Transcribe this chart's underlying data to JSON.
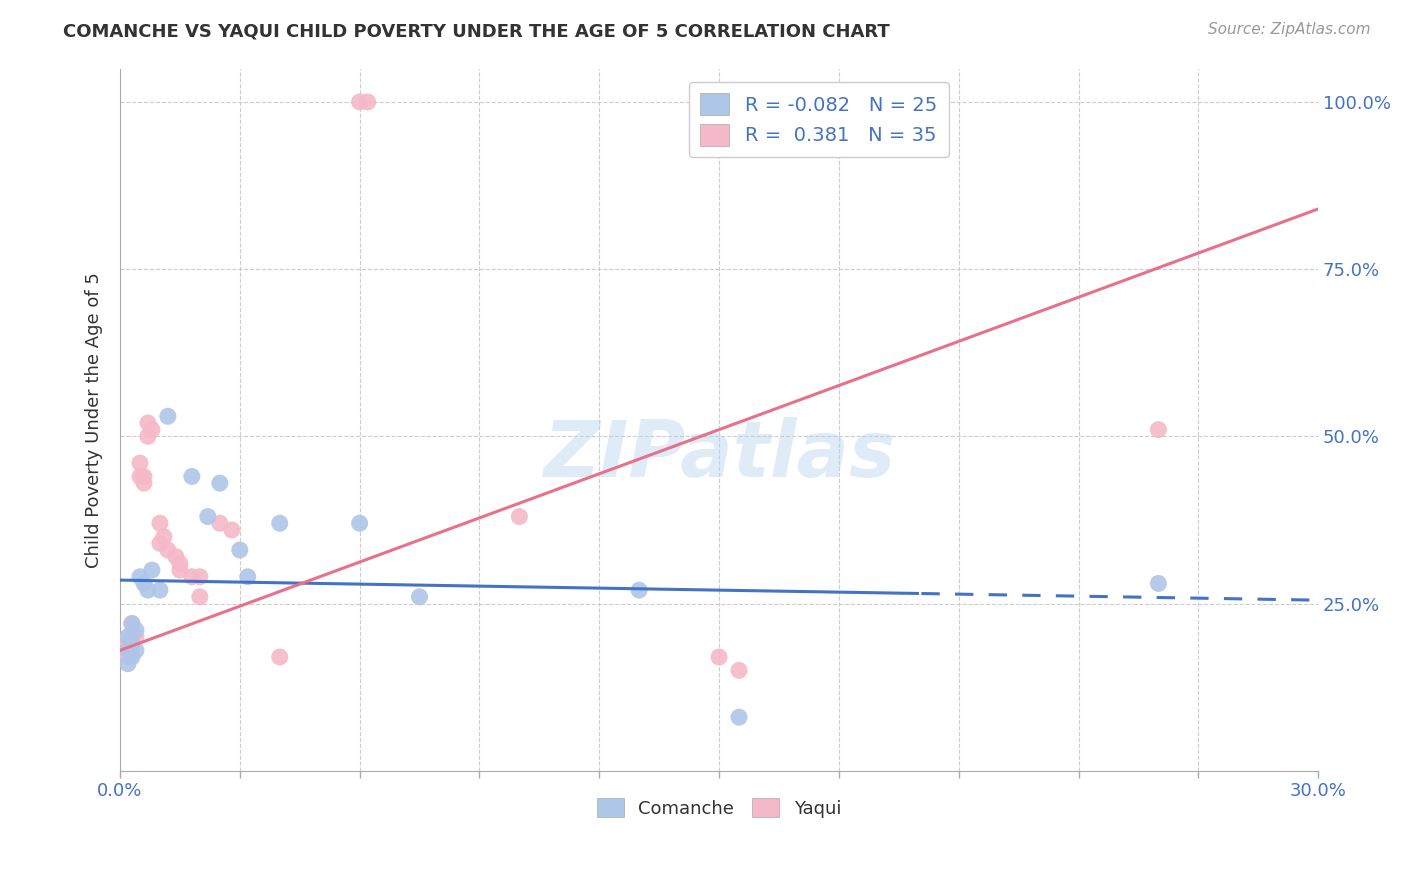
{
  "title": "COMANCHE VS YAQUI CHILD POVERTY UNDER THE AGE OF 5 CORRELATION CHART",
  "source": "Source: ZipAtlas.com",
  "ylabel": "Child Poverty Under the Age of 5",
  "xlim": [
    0.0,
    0.3
  ],
  "ylim": [
    0.0,
    1.05
  ],
  "yticks": [
    0.25,
    0.5,
    0.75,
    1.0
  ],
  "ytick_labels": [
    "25.0%",
    "50.0%",
    "75.0%",
    "100.0%"
  ],
  "xticks": [
    0.0,
    0.03,
    0.06,
    0.09,
    0.12,
    0.15,
    0.18,
    0.21,
    0.24,
    0.27,
    0.3
  ],
  "xtick_labels": [
    "0.0%",
    "",
    "",
    "",
    "",
    "",
    "",
    "",
    "",
    "",
    "30.0%"
  ],
  "comanche_color": "#aec6e8",
  "yaqui_color": "#f4b8c8",
  "comanche_line_color": "#4472c4",
  "yaqui_line_color": "#e8708a",
  "legend_label_comanche": "R = -0.082   N = 25",
  "legend_label_yaqui": "R =  0.381   N = 35",
  "comanche_scatter": [
    [
      0.002,
      0.2
    ],
    [
      0.002,
      0.18
    ],
    [
      0.002,
      0.16
    ],
    [
      0.003,
      0.22
    ],
    [
      0.003,
      0.19
    ],
    [
      0.003,
      0.17
    ],
    [
      0.004,
      0.21
    ],
    [
      0.004,
      0.18
    ],
    [
      0.005,
      0.29
    ],
    [
      0.006,
      0.28
    ],
    [
      0.007,
      0.27
    ],
    [
      0.008,
      0.3
    ],
    [
      0.01,
      0.27
    ],
    [
      0.012,
      0.53
    ],
    [
      0.018,
      0.44
    ],
    [
      0.022,
      0.38
    ],
    [
      0.025,
      0.43
    ],
    [
      0.03,
      0.33
    ],
    [
      0.032,
      0.29
    ],
    [
      0.04,
      0.37
    ],
    [
      0.06,
      0.37
    ],
    [
      0.075,
      0.26
    ],
    [
      0.13,
      0.27
    ],
    [
      0.155,
      0.08
    ],
    [
      0.26,
      0.28
    ]
  ],
  "yaqui_scatter": [
    [
      0.002,
      0.2
    ],
    [
      0.002,
      0.19
    ],
    [
      0.002,
      0.18
    ],
    [
      0.002,
      0.17
    ],
    [
      0.003,
      0.22
    ],
    [
      0.003,
      0.2
    ],
    [
      0.003,
      0.19
    ],
    [
      0.003,
      0.18
    ],
    [
      0.004,
      0.2
    ],
    [
      0.005,
      0.46
    ],
    [
      0.005,
      0.44
    ],
    [
      0.006,
      0.44
    ],
    [
      0.006,
      0.43
    ],
    [
      0.007,
      0.52
    ],
    [
      0.007,
      0.5
    ],
    [
      0.008,
      0.51
    ],
    [
      0.01,
      0.37
    ],
    [
      0.01,
      0.34
    ],
    [
      0.011,
      0.35
    ],
    [
      0.012,
      0.33
    ],
    [
      0.014,
      0.32
    ],
    [
      0.015,
      0.31
    ],
    [
      0.015,
      0.3
    ],
    [
      0.018,
      0.29
    ],
    [
      0.02,
      0.29
    ],
    [
      0.02,
      0.26
    ],
    [
      0.025,
      0.37
    ],
    [
      0.028,
      0.36
    ],
    [
      0.04,
      0.17
    ],
    [
      0.06,
      1.0
    ],
    [
      0.062,
      1.0
    ],
    [
      0.1,
      0.38
    ],
    [
      0.15,
      0.17
    ],
    [
      0.155,
      0.15
    ],
    [
      0.26,
      0.51
    ]
  ],
  "watermark": "ZIPatlas",
  "background_color": "#ffffff",
  "grid_color": "#cccccc"
}
